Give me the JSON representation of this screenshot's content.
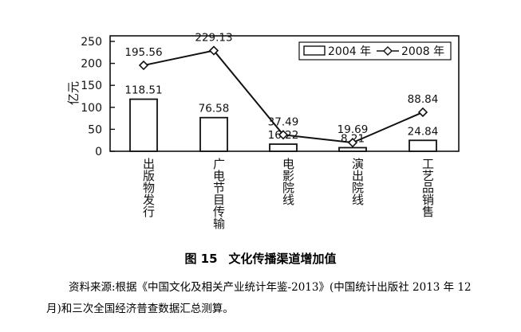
{
  "chart_data": {
    "type": "bar+line",
    "categories": [
      "出版物发行",
      "广电节目传输",
      "电影院线",
      "演出院线",
      "工艺品销售"
    ],
    "series": [
      {
        "name": "2004 年",
        "kind": "bar",
        "values": [
          118.51,
          76.58,
          16.22,
          8.21,
          24.84
        ],
        "labels": [
          "118.51",
          "76.58",
          "16.22",
          "8.21",
          "24.84"
        ]
      },
      {
        "name": "2008 年",
        "kind": "line",
        "values": [
          195.56,
          229.13,
          37.49,
          19.69,
          88.84
        ],
        "labels": [
          "195.56",
          "229.13",
          "37.49",
          "19.69",
          "88.84"
        ]
      }
    ],
    "ylabel": "亿元",
    "ylim": [
      0,
      250
    ],
    "yticks": [
      0,
      50,
      100,
      150,
      200,
      250
    ],
    "ytick_labels": [
      "0",
      "50",
      "100",
      "150",
      "200",
      "250"
    ],
    "legend_position": "top-right",
    "grid": false
  },
  "caption": {
    "number": "图 15",
    "title": "文化传播渠道增加值"
  },
  "source_note": "资料来源:根据《中国文化及相关产业统计年鉴-2013》(中国统计出版社 2013 年 12 月)和三次全国经济普查数据汇总测算。",
  "colors": {
    "ink": "#111111",
    "background": "#ffffff"
  }
}
